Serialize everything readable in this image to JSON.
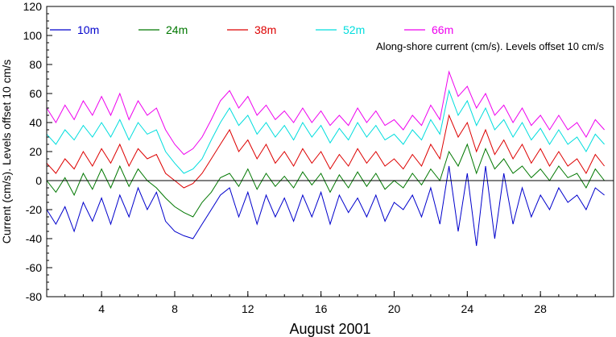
{
  "chart_data": {
    "type": "line",
    "title": "",
    "xlabel": "August 2001",
    "ylabel": "Current (cm/s). Levels offset 10 cm/s",
    "annotation": "Along-shore current (cm/s). Levels offset 10 cm/s",
    "xlim": [
      1,
      32
    ],
    "ylim": [
      -80,
      120
    ],
    "xticks": [
      4,
      8,
      12,
      16,
      20,
      24,
      28
    ],
    "xtick_labels": [
      "4",
      "8",
      "12",
      "16",
      "20",
      "24",
      "28"
    ],
    "yticks": [
      -80,
      -60,
      -40,
      -20,
      0,
      20,
      40,
      60,
      80,
      100,
      120
    ],
    "ytick_labels": [
      "-80",
      "-60",
      "-40",
      "-20",
      "0",
      "20",
      "40",
      "60",
      "80",
      "100",
      "120"
    ],
    "zero_line": true,
    "grid": false,
    "legend_position": "top",
    "series": [
      {
        "name": "10m",
        "color": "#0000cc",
        "x": [
          1,
          1.5,
          2,
          2.5,
          3,
          3.5,
          4,
          4.5,
          5,
          5.5,
          6,
          6.5,
          7,
          7.5,
          8,
          8.5,
          9,
          9.5,
          10,
          10.5,
          11,
          11.5,
          12,
          12.5,
          13,
          13.5,
          14,
          14.5,
          15,
          15.5,
          16,
          16.5,
          17,
          17.5,
          18,
          18.5,
          19,
          19.5,
          20,
          20.5,
          21,
          21.5,
          22,
          22.5,
          23,
          23.5,
          24,
          24.5,
          25,
          25.5,
          26,
          26.5,
          27,
          27.5,
          28,
          28.5,
          29,
          29.5,
          30,
          30.5,
          31,
          31.5
        ],
        "values": [
          -20,
          -30,
          -18,
          -35,
          -15,
          -28,
          -12,
          -30,
          -10,
          -25,
          -5,
          -20,
          -8,
          -28,
          -35,
          -38,
          -40,
          -30,
          -20,
          -10,
          -5,
          -25,
          -8,
          -30,
          -10,
          -25,
          -12,
          -28,
          -10,
          -25,
          -8,
          -30,
          -10,
          -22,
          -12,
          -25,
          -10,
          -28,
          -15,
          -20,
          -10,
          -25,
          -5,
          -30,
          10,
          -35,
          5,
          -45,
          10,
          -40,
          5,
          -30,
          -5,
          -25,
          -10,
          -20,
          -5,
          -15,
          -10,
          -20,
          -5,
          -10
        ]
      },
      {
        "name": "24m",
        "color": "#007700",
        "x": [
          1,
          1.5,
          2,
          2.5,
          3,
          3.5,
          4,
          4.5,
          5,
          5.5,
          6,
          6.5,
          7,
          7.5,
          8,
          8.5,
          9,
          9.5,
          10,
          10.5,
          11,
          11.5,
          12,
          12.5,
          13,
          13.5,
          14,
          14.5,
          15,
          15.5,
          16,
          16.5,
          17,
          17.5,
          18,
          18.5,
          19,
          19.5,
          20,
          20.5,
          21,
          21.5,
          22,
          22.5,
          23,
          23.5,
          24,
          24.5,
          25,
          25.5,
          26,
          26.5,
          27,
          27.5,
          28,
          28.5,
          29,
          29.5,
          30,
          30.5,
          31,
          31.5
        ],
        "values": [
          0,
          -8,
          2,
          -10,
          5,
          -6,
          8,
          -5,
          10,
          -4,
          8,
          0,
          -5,
          -12,
          -18,
          -22,
          -25,
          -15,
          -8,
          2,
          5,
          -4,
          8,
          -6,
          5,
          -4,
          3,
          -5,
          6,
          -3,
          5,
          -8,
          4,
          -5,
          6,
          -4,
          5,
          -6,
          0,
          -5,
          5,
          -3,
          8,
          0,
          20,
          10,
          25,
          5,
          22,
          8,
          15,
          5,
          10,
          2,
          8,
          0,
          10,
          2,
          5,
          -5,
          8,
          0
        ]
      },
      {
        "name": "38m",
        "color": "#dd0000",
        "x": [
          1,
          1.5,
          2,
          2.5,
          3,
          3.5,
          4,
          4.5,
          5,
          5.5,
          6,
          6.5,
          7,
          7.5,
          8,
          8.5,
          9,
          9.5,
          10,
          10.5,
          11,
          11.5,
          12,
          12.5,
          13,
          13.5,
          14,
          14.5,
          15,
          15.5,
          16,
          16.5,
          17,
          17.5,
          18,
          18.5,
          19,
          19.5,
          20,
          20.5,
          21,
          21.5,
          22,
          22.5,
          23,
          23.5,
          24,
          24.5,
          25,
          25.5,
          26,
          26.5,
          27,
          27.5,
          28,
          28.5,
          29,
          29.5,
          30,
          30.5,
          31,
          31.5
        ],
        "values": [
          12,
          5,
          15,
          8,
          20,
          10,
          22,
          12,
          25,
          10,
          22,
          15,
          18,
          5,
          0,
          -5,
          -2,
          5,
          15,
          25,
          35,
          20,
          28,
          15,
          25,
          12,
          20,
          10,
          22,
          12,
          20,
          8,
          18,
          10,
          22,
          12,
          20,
          10,
          15,
          8,
          18,
          10,
          25,
          15,
          45,
          30,
          40,
          20,
          35,
          18,
          28,
          15,
          25,
          12,
          22,
          10,
          20,
          10,
          15,
          5,
          18,
          10
        ]
      },
      {
        "name": "52m",
        "color": "#00dddd",
        "x": [
          1,
          1.5,
          2,
          2.5,
          3,
          3.5,
          4,
          4.5,
          5,
          5.5,
          6,
          6.5,
          7,
          7.5,
          8,
          8.5,
          9,
          9.5,
          10,
          10.5,
          11,
          11.5,
          12,
          12.5,
          13,
          13.5,
          14,
          14.5,
          15,
          15.5,
          16,
          16.5,
          17,
          17.5,
          18,
          18.5,
          19,
          19.5,
          20,
          20.5,
          21,
          21.5,
          22,
          22.5,
          23,
          23.5,
          24,
          24.5,
          25,
          25.5,
          26,
          26.5,
          27,
          27.5,
          28,
          28.5,
          29,
          29.5,
          30,
          30.5,
          31,
          31.5
        ],
        "values": [
          32,
          25,
          35,
          28,
          38,
          30,
          40,
          30,
          42,
          28,
          40,
          32,
          35,
          20,
          12,
          5,
          8,
          15,
          28,
          40,
          50,
          38,
          45,
          32,
          40,
          30,
          38,
          28,
          40,
          30,
          38,
          26,
          36,
          28,
          40,
          30,
          38,
          28,
          32,
          25,
          35,
          28,
          42,
          32,
          62,
          45,
          55,
          38,
          50,
          35,
          42,
          30,
          40,
          28,
          36,
          25,
          35,
          25,
          30,
          20,
          32,
          25
        ]
      },
      {
        "name": "66m",
        "color": "#ee00ee",
        "x": [
          1,
          1.5,
          2,
          2.5,
          3,
          3.5,
          4,
          4.5,
          5,
          5.5,
          6,
          6.5,
          7,
          7.5,
          8,
          8.5,
          9,
          9.5,
          10,
          10.5,
          11,
          11.5,
          12,
          12.5,
          13,
          13.5,
          14,
          14.5,
          15,
          15.5,
          16,
          16.5,
          17,
          17.5,
          18,
          18.5,
          19,
          19.5,
          20,
          20.5,
          21,
          21.5,
          22,
          22.5,
          23,
          23.5,
          24,
          24.5,
          25,
          25.5,
          26,
          26.5,
          27,
          27.5,
          28,
          28.5,
          29,
          29.5,
          30,
          30.5,
          31,
          31.5
        ],
        "values": [
          50,
          40,
          52,
          42,
          55,
          45,
          58,
          45,
          60,
          42,
          55,
          45,
          50,
          35,
          25,
          18,
          22,
          30,
          42,
          55,
          62,
          50,
          58,
          45,
          52,
          42,
          48,
          40,
          50,
          40,
          48,
          38,
          45,
          38,
          50,
          40,
          48,
          38,
          42,
          35,
          45,
          38,
          52,
          42,
          75,
          58,
          65,
          50,
          60,
          45,
          52,
          40,
          50,
          38,
          45,
          35,
          45,
          35,
          40,
          30,
          42,
          35
        ]
      }
    ]
  }
}
